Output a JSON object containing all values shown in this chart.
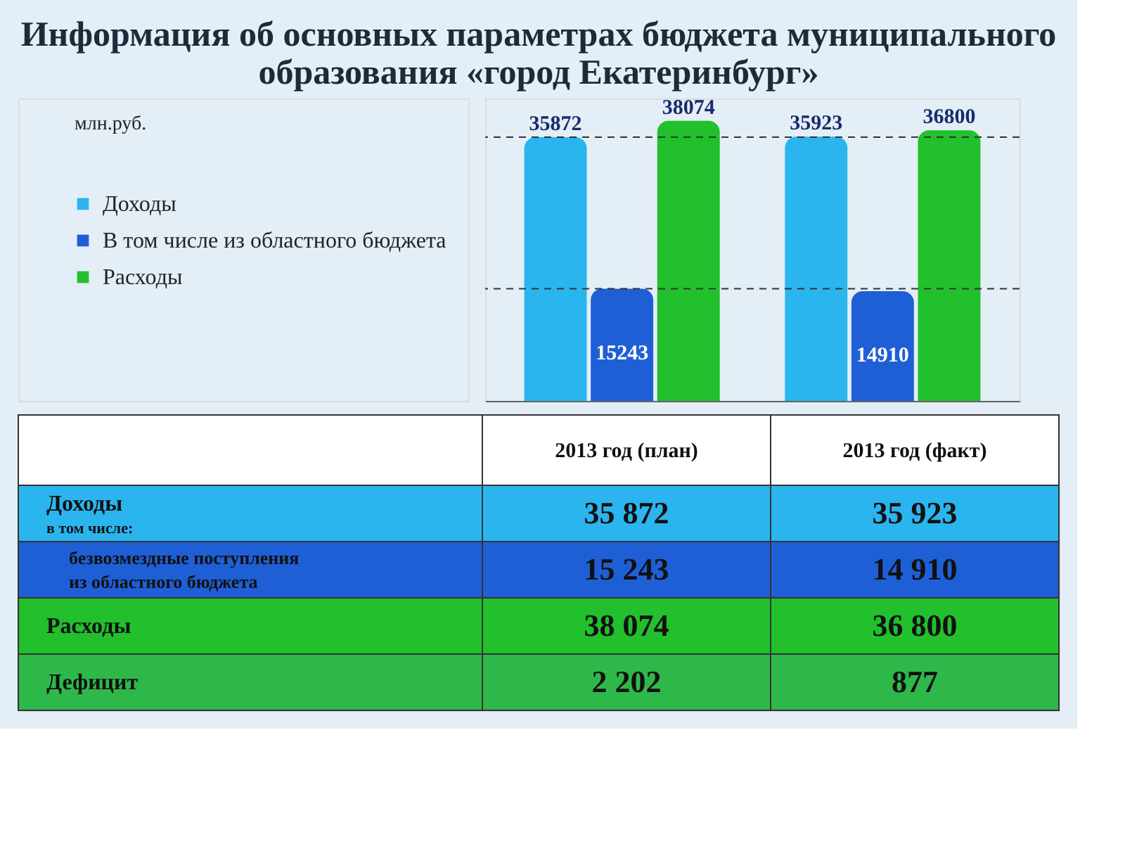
{
  "chart_data": [
    {
      "type": "bar",
      "title": "Информация об основных параметрах бюджета муниципального образования «город Екатеринбург»",
      "categories": [
        null,
        null
      ],
      "series": [
        {
          "name": "Доходы",
          "color": "#2bb5ee",
          "values": [
            35872,
            35923
          ],
          "value_labels": [
            "35872",
            "35923"
          ]
        },
        {
          "name": "В том числе из областного бюджета",
          "color": "#1f5fd6",
          "values": [
            15243,
            14910
          ],
          "value_labels": [
            "15243",
            "14910"
          ]
        },
        {
          "name": "Расходы",
          "color": "#21c02c",
          "values": [
            38074,
            36800
          ],
          "value_labels": [
            "38074",
            "36800"
          ]
        }
      ],
      "annotations": [
        "млн.руб."
      ],
      "ref_lines": [
        {
          "axis": "y",
          "value": 35872,
          "line_style": "dashed",
          "color": "#333333"
        },
        {
          "axis": "y",
          "value": 15243,
          "line_style": "dashed",
          "color": "#333333"
        }
      ],
      "legend": "left",
      "tick_labels": false,
      "grid": false
    },
    {
      "type": "other",
      "categories": [
        "2013 год (план)",
        "2013 год (факт)"
      ],
      "y_categories": [
        "Доходы",
        "безвозмездные поступления из областного бюджета",
        "Расходы",
        "Дефицит"
      ],
      "cell_labels": [
        [
          "35 872",
          "35 923"
        ],
        [
          "15 243",
          "14 910"
        ],
        [
          "38 074",
          "36 800"
        ],
        [
          "2 202",
          "877"
        ]
      ],
      "annotations": [
        "в том числе:"
      ]
    }
  ]
}
